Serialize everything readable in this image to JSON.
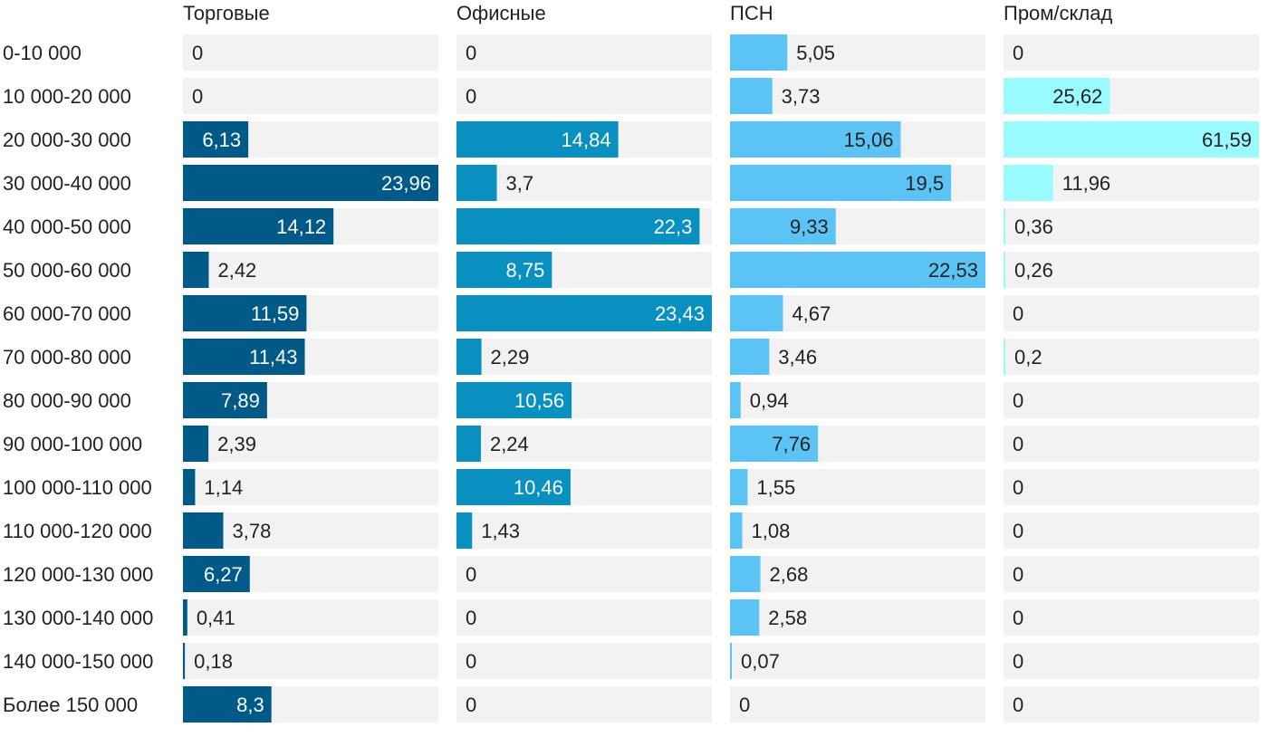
{
  "chart_data": {
    "type": "bar",
    "orientation": "horizontal",
    "layout": "small-multiples",
    "categories": [
      "0-10 000",
      "10 000-20 000",
      "20 000-30 000",
      "30 000-40 000",
      "40 000-50 000",
      "50 000-60 000",
      "60 000-70 000",
      "70 000-80 000",
      "80 000-90 000",
      "90 000-100 000",
      "100 000-110 000",
      "110 000-120 000",
      "120 000-130 000",
      "130 000-140 000",
      "140 000-150 000",
      "Более 150 000"
    ],
    "series": [
      {
        "name": "Торговые",
        "color": "#005a87",
        "xlim": [
          0,
          23.96
        ],
        "values": [
          0,
          0,
          6.13,
          23.96,
          14.12,
          2.42,
          11.59,
          11.43,
          7.89,
          2.39,
          1.14,
          3.78,
          6.27,
          0.41,
          0.18,
          8.3
        ],
        "labels": [
          "0",
          "0",
          "6,13",
          "23,96",
          "14,12",
          "2,42",
          "11,59",
          "11,43",
          "7,89",
          "2,39",
          "1,14",
          "3,78",
          "6,27",
          "0,41",
          "0,18",
          "8,3"
        ]
      },
      {
        "name": "Офисные",
        "color": "#0891c0",
        "xlim": [
          0,
          23.43
        ],
        "values": [
          0,
          0,
          14.84,
          3.7,
          22.3,
          8.75,
          23.43,
          2.29,
          10.56,
          2.24,
          10.46,
          1.43,
          0,
          0,
          0,
          0
        ],
        "labels": [
          "0",
          "0",
          "14,84",
          "3,7",
          "22,3",
          "8,75",
          "23,43",
          "2,29",
          "10,56",
          "2,24",
          "10,46",
          "1,43",
          "0",
          "0",
          "0",
          "0"
        ]
      },
      {
        "name": "ПСН",
        "color": "#5bc4f5",
        "xlim": [
          0,
          22.53
        ],
        "values": [
          5.05,
          3.73,
          15.06,
          19.5,
          9.33,
          22.53,
          4.67,
          3.46,
          0.94,
          7.76,
          1.55,
          1.08,
          2.68,
          2.58,
          0.07,
          0
        ],
        "labels": [
          "5,05",
          "3,73",
          "15,06",
          "19,5",
          "9,33",
          "22,53",
          "4,67",
          "3,46",
          "0,94",
          "7,76",
          "1,55",
          "1,08",
          "2,68",
          "2,58",
          "0,07",
          "0"
        ]
      },
      {
        "name": "Пром/склад",
        "color": "#99fbff",
        "xlim": [
          0,
          61.59
        ],
        "values": [
          0,
          25.62,
          61.59,
          11.96,
          0.36,
          0.26,
          0,
          0.2,
          0,
          0,
          0,
          0,
          0,
          0,
          0,
          0
        ],
        "labels": [
          "0",
          "25,62",
          "61,59",
          "11,96",
          "0,36",
          "0,26",
          "0",
          "0,2",
          "0",
          "0",
          "0",
          "0",
          "0",
          "0",
          "0",
          "0"
        ]
      }
    ],
    "track_color": "#f2f2f2",
    "label_color_inside_dark": "#ffffff",
    "label_color_outside": "#222222",
    "grid": false,
    "legend": "none"
  }
}
